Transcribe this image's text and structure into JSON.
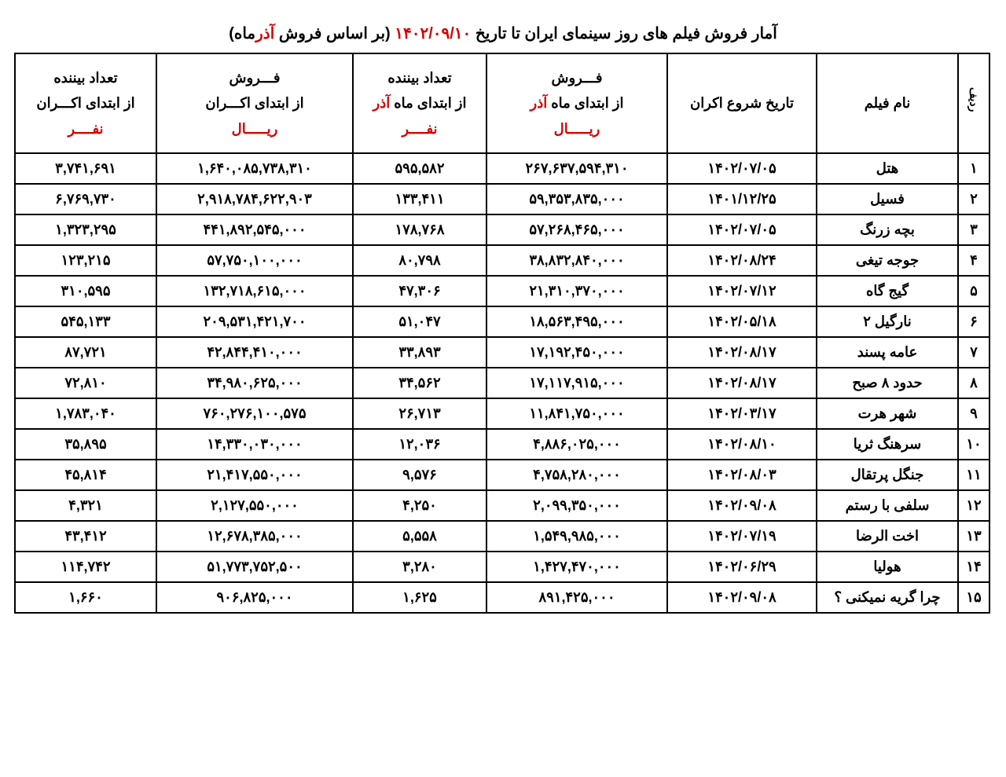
{
  "title": {
    "prefix": "آمار فروش فیلم های روز سینمای ایران تا تاریخ  ",
    "date_accent": "۱۴۰۲/۰۹/۱۰",
    "suffix_open": " (بر اساس فروش ",
    "month_accent": "آذر",
    "suffix_close": "ماه)"
  },
  "columns": {
    "idx": "ردیف",
    "name": "نام فیلم",
    "release_date": "تاریخ شروع اکران",
    "sales_month_l1": "فـــروش",
    "sales_month_l2_a": "از ابتدای ماه ",
    "sales_month_l2_b": "آذر",
    "sales_month_l3": "ریـــــال",
    "viewers_month_l1": "تعداد بیننده",
    "viewers_month_l2_a": "از ابتدای ماه ",
    "viewers_month_l2_b": "آذر",
    "viewers_month_l3": "نفــــر",
    "sales_total_l1": "فـــروش",
    "sales_total_l2": "از ابتدای اکـــران",
    "sales_total_l3": "ریـــــال",
    "viewers_total_l1": "تعداد بیننده",
    "viewers_total_l2": "از ابتدای اکـــران",
    "viewers_total_l3": "نفــــر"
  },
  "rows": [
    {
      "idx": "۱",
      "name": "هتل",
      "date": "۱۴۰۲/۰۷/۰۵",
      "sales_m": "۲۶۷,۶۳۷,۵۹۴,۳۱۰",
      "view_m": "۵۹۵,۵۸۲",
      "sales_t": "۱,۶۴۰,۰۸۵,۷۳۸,۳۱۰",
      "view_t": "۳,۷۴۱,۶۹۱"
    },
    {
      "idx": "۲",
      "name": "فسیل",
      "date": "۱۴۰۱/۱۲/۲۵",
      "sales_m": "۵۹,۳۵۳,۸۳۵,۰۰۰",
      "view_m": "۱۳۳,۴۱۱",
      "sales_t": "۲,۹۱۸,۷۸۴,۶۲۲,۹۰۳",
      "view_t": "۶,۷۶۹,۷۳۰"
    },
    {
      "idx": "۳",
      "name": "بچه زرنگ",
      "date": "۱۴۰۲/۰۷/۰۵",
      "sales_m": "۵۷,۲۶۸,۴۶۵,۰۰۰",
      "view_m": "۱۷۸,۷۶۸",
      "sales_t": "۴۴۱,۸۹۲,۵۴۵,۰۰۰",
      "view_t": "۱,۳۲۳,۲۹۵"
    },
    {
      "idx": "۴",
      "name": "جوجه تیغی",
      "date": "۱۴۰۲/۰۸/۲۴",
      "sales_m": "۳۸,۸۳۲,۸۴۰,۰۰۰",
      "view_m": "۸۰,۷۹۸",
      "sales_t": "۵۷,۷۵۰,۱۰۰,۰۰۰",
      "view_t": "۱۲۳,۲۱۵"
    },
    {
      "idx": "۵",
      "name": "گیج گاه",
      "date": "۱۴۰۲/۰۷/۱۲",
      "sales_m": "۲۱,۳۱۰,۳۷۰,۰۰۰",
      "view_m": "۴۷,۳۰۶",
      "sales_t": "۱۳۲,۷۱۸,۶۱۵,۰۰۰",
      "view_t": "۳۱۰,۵۹۵"
    },
    {
      "idx": "۶",
      "name": "نارگیل ۲",
      "date": "۱۴۰۲/۰۵/۱۸",
      "sales_m": "۱۸,۵۶۳,۴۹۵,۰۰۰",
      "view_m": "۵۱,۰۴۷",
      "sales_t": "۲۰۹,۵۳۱,۴۲۱,۷۰۰",
      "view_t": "۵۴۵,۱۳۳"
    },
    {
      "idx": "۷",
      "name": "عامه پسند",
      "date": "۱۴۰۲/۰۸/۱۷",
      "sales_m": "۱۷,۱۹۲,۴۵۰,۰۰۰",
      "view_m": "۳۳,۸۹۳",
      "sales_t": "۴۲,۸۴۴,۴۱۰,۰۰۰",
      "view_t": "۸۷,۷۲۱"
    },
    {
      "idx": "۸",
      "name": "حدود ۸ صبح",
      "date": "۱۴۰۲/۰۸/۱۷",
      "sales_m": "۱۷,۱۱۷,۹۱۵,۰۰۰",
      "view_m": "۳۴,۵۶۲",
      "sales_t": "۳۴,۹۸۰,۶۲۵,۰۰۰",
      "view_t": "۷۲,۸۱۰"
    },
    {
      "idx": "۹",
      "name": "شهر هرت",
      "date": "۱۴۰۲/۰۳/۱۷",
      "sales_m": "۱۱,۸۴۱,۷۵۰,۰۰۰",
      "view_m": "۲۶,۷۱۳",
      "sales_t": "۷۶۰,۲۷۶,۱۰۰,۵۷۵",
      "view_t": "۱,۷۸۳,۰۴۰"
    },
    {
      "idx": "۱۰",
      "name": "سرهنگ ثریا",
      "date": "۱۴۰۲/۰۸/۱۰",
      "sales_m": "۴,۸۸۶,۰۲۵,۰۰۰",
      "view_m": "۱۲,۰۳۶",
      "sales_t": "۱۴,۳۳۰,۰۳۰,۰۰۰",
      "view_t": "۳۵,۸۹۵"
    },
    {
      "idx": "۱۱",
      "name": "جنگل پرتقال",
      "date": "۱۴۰۲/۰۸/۰۳",
      "sales_m": "۴,۷۵۸,۲۸۰,۰۰۰",
      "view_m": "۹,۵۷۶",
      "sales_t": "۲۱,۴۱۷,۵۵۰,۰۰۰",
      "view_t": "۴۵,۸۱۴"
    },
    {
      "idx": "۱۲",
      "name": "سلفی با رستم",
      "date": "۱۴۰۲/۰۹/۰۸",
      "sales_m": "۲,۰۹۹,۳۵۰,۰۰۰",
      "view_m": "۴,۲۵۰",
      "sales_t": "۲,۱۲۷,۵۵۰,۰۰۰",
      "view_t": "۴,۳۲۱"
    },
    {
      "idx": "۱۳",
      "name": "اخت الرضا",
      "date": "۱۴۰۲/۰۷/۱۹",
      "sales_m": "۱,۵۴۹,۹۸۵,۰۰۰",
      "view_m": "۵,۵۵۸",
      "sales_t": "۱۲,۶۷۸,۳۸۵,۰۰۰",
      "view_t": "۴۳,۴۱۲"
    },
    {
      "idx": "۱۴",
      "name": "هولیا",
      "date": "۱۴۰۲/۰۶/۲۹",
      "sales_m": "۱,۴۲۷,۴۷۰,۰۰۰",
      "view_m": "۳,۲۸۰",
      "sales_t": "۵۱,۷۷۳,۷۵۲,۵۰۰",
      "view_t": "۱۱۴,۷۴۲"
    },
    {
      "idx": "۱۵",
      "name": "چرا گریه نمیکنی ؟",
      "date": "۱۴۰۲/۰۹/۰۸",
      "sales_m": "۸۹۱,۴۲۵,۰۰۰",
      "view_m": "۱,۶۲۵",
      "sales_t": "۹۰۶,۸۲۵,۰۰۰",
      "view_t": "۱,۶۶۰"
    }
  ],
  "styling": {
    "accent_color": "#d40000",
    "text_color": "#000000",
    "border_color": "#000000",
    "background_color": "#ffffff",
    "title_fontsize": 20,
    "header_fontsize": 18,
    "cell_fontsize": 18,
    "border_width": 2
  }
}
